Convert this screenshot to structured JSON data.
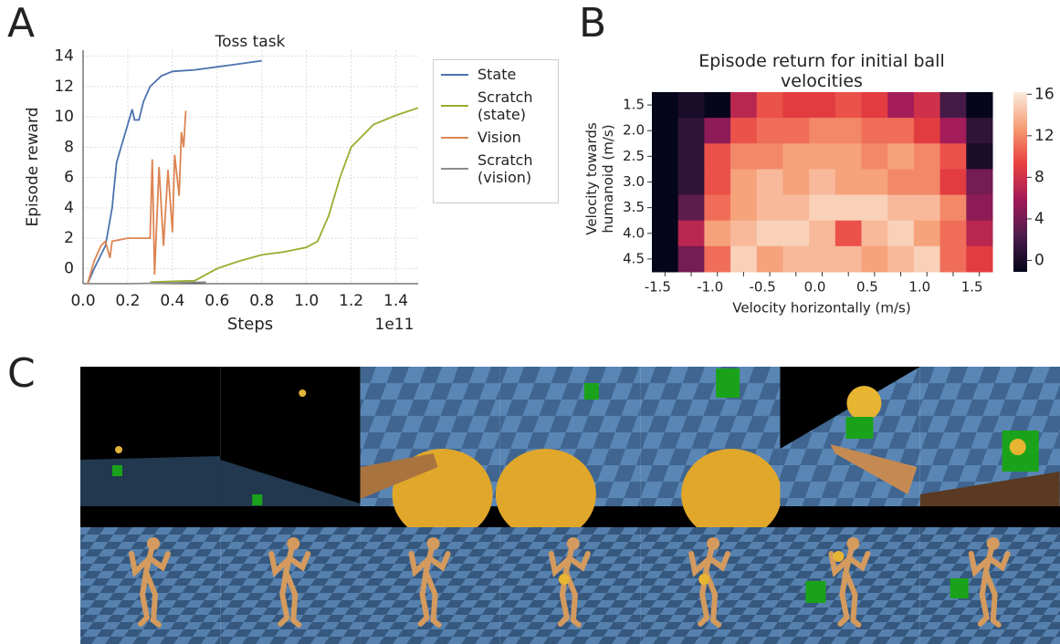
{
  "panel_labels": [
    "A",
    "B",
    "C"
  ],
  "chart_data": [
    {
      "type": "line",
      "title": "Toss task",
      "x_label": "Steps",
      "x_offset_label": "1e11",
      "y_label": "Episode reward",
      "xlim": [
        0,
        1.5
      ],
      "ylim": [
        -1,
        14.4
      ],
      "xticks": [
        {
          "value": 0,
          "label": "0.0"
        },
        0.2,
        0.4,
        0.6,
        0.8,
        {
          "value": 1,
          "label": "1.0"
        },
        1.2,
        1.4
      ],
      "yticks": [
        0,
        2,
        4,
        6,
        8,
        10,
        12,
        14
      ],
      "grid": true,
      "series": [
        {
          "name": "State",
          "color": "#4c72b0",
          "x": [
            0.02,
            0.05,
            0.1,
            0.13,
            0.15,
            0.18,
            0.2,
            0.22,
            0.23,
            0.25,
            0.27,
            0.3,
            0.35,
            0.4,
            0.5,
            0.6,
            0.7,
            0.8
          ],
          "values": [
            -1,
            0,
            1.5,
            4,
            7,
            8.5,
            9.5,
            10.5,
            9.8,
            9.8,
            11,
            12,
            12.7,
            13,
            13.1,
            13.3,
            13.5,
            13.7
          ]
        },
        {
          "name": "Scratch (state)",
          "color": "#9aac2c",
          "x": [
            0.3,
            0.5,
            0.6,
            0.7,
            0.8,
            0.9,
            1.0,
            1.05,
            1.1,
            1.15,
            1.2,
            1.3,
            1.4,
            1.5
          ],
          "values": [
            -0.9,
            -0.8,
            0,
            0.5,
            0.9,
            1.1,
            1.4,
            1.8,
            3.5,
            6,
            8,
            9.5,
            10.1,
            10.6
          ]
        },
        {
          "name": "Vision",
          "color": "#dd8452",
          "x": [
            0.02,
            0.05,
            0.08,
            0.1,
            0.12,
            0.13,
            0.2,
            0.3,
            0.31,
            0.32,
            0.34,
            0.36,
            0.38,
            0.4,
            0.41,
            0.43,
            0.44,
            0.45,
            0.46
          ],
          "values": [
            -1,
            0.5,
            1.5,
            1.8,
            0.7,
            1.8,
            2,
            2,
            7.2,
            -0.4,
            6.7,
            1.5,
            6.5,
            2.4,
            7.5,
            4.8,
            9,
            8,
            10.4
          ]
        },
        {
          "name": "Scratch (vision)",
          "color": "#8c8c8c",
          "x": [
            0.2,
            0.4,
            0.55
          ],
          "values": [
            -1,
            -0.95,
            -0.9
          ]
        }
      ]
    },
    {
      "type": "heatmap",
      "title": "Episode return for initial ball velocities",
      "x_label": "Velocity horizontally (m/s)",
      "y_label": "Velocity towards humanoid (m/s)",
      "categories": [
        "-1.5",
        null,
        "-1.0",
        null,
        "-0.5",
        null,
        "0.0",
        null,
        "0.5",
        null,
        "1.0",
        null,
        "1.5"
      ],
      "y_categories": [
        "1.5",
        "2.0",
        "2.5",
        "3.0",
        "3.5",
        "4.0",
        "4.5"
      ],
      "values": [
        [
          -1,
          0,
          -1,
          7,
          10,
          9,
          9,
          10,
          9,
          6,
          8,
          2,
          -1
        ],
        [
          -1,
          1,
          5,
          10,
          11,
          11,
          12,
          12,
          11,
          11,
          9,
          6,
          1
        ],
        [
          -1,
          1,
          10,
          12,
          12,
          13,
          13,
          13,
          12,
          13,
          12,
          10,
          0
        ],
        [
          -1,
          1,
          10,
          13,
          14,
          13,
          14,
          13,
          13,
          12,
          12,
          9,
          4
        ],
        [
          -1,
          3,
          11,
          13,
          14,
          14,
          15,
          15,
          15,
          14,
          14,
          12,
          5
        ],
        [
          -1,
          7,
          13,
          14,
          15,
          15,
          14,
          10,
          14,
          15,
          13,
          11,
          7
        ],
        [
          -1,
          4,
          11,
          15,
          13,
          14,
          14,
          14,
          13,
          14,
          15,
          11,
          9
        ]
      ],
      "colorbar_lim": [
        -1.1,
        16.2
      ],
      "colorbar_ticks": [
        0,
        4,
        8,
        12,
        16
      ],
      "colorscale": [
        "#03051a",
        "#4c1d4b",
        "#a11a5b",
        "#e83f3f",
        "#f69c73",
        "#faebdd"
      ]
    }
  ]
}
